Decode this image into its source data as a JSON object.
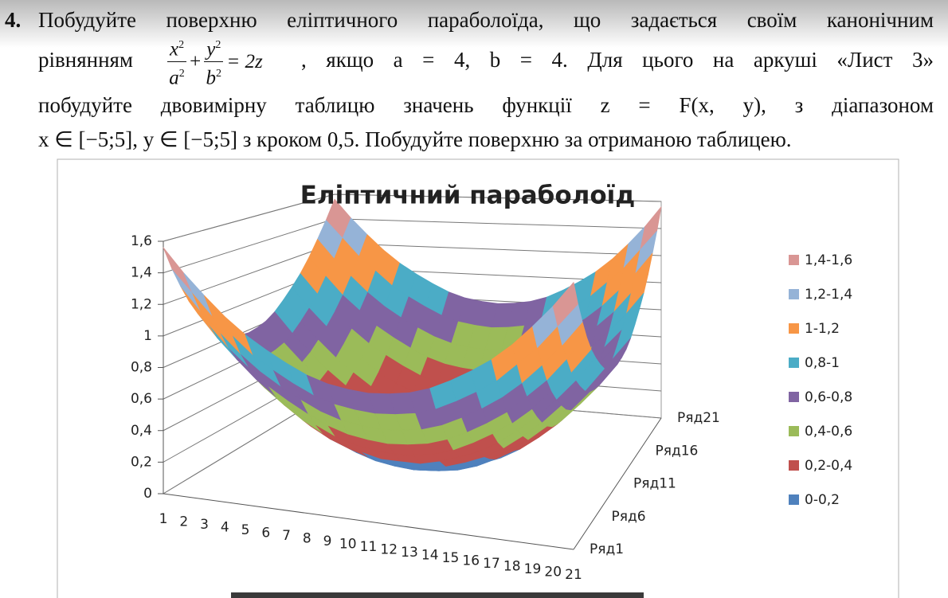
{
  "document": {
    "number": "4.",
    "line1": "Побудуйте поверхню еліптичного параболоїда, що задається своїм канонічним",
    "line2_before": "рівнянням",
    "formula": {
      "terms": [
        {
          "num": "x",
          "den": "a",
          "exp": "2"
        },
        {
          "num": "y",
          "den": "b",
          "exp": "2"
        }
      ],
      "plus": "+",
      "rhs": "= 2z"
    },
    "line2_after": ", якщо a = 4, b = 4. Для цього на аркуші «Лист 3»",
    "line3": "побудуйте двовимірну таблицю  значень функції z = F(x, y), з діапазоном",
    "line4": "x ∈ [−5;5],  y ∈ [−5;5] з кроком 0,5. Побудуйте поверхню за отриманою таблицею."
  },
  "chart_data": {
    "type": "surface",
    "title": "Еліптичний параболоїд",
    "categories": [
      "1",
      "2",
      "3",
      "4",
      "5",
      "6",
      "7",
      "8",
      "9",
      "10",
      "11",
      "12",
      "13",
      "14",
      "15",
      "16",
      "17",
      "18",
      "19",
      "20",
      "21"
    ],
    "series": [
      {
        "name": "Ряд1",
        "values": [
          1.56,
          1.41,
          1.28,
          1.16,
          1.06,
          0.98,
          0.91,
          0.85,
          0.81,
          0.79,
          0.78,
          0.79,
          0.81,
          0.85,
          0.91,
          0.98,
          1.06,
          1.16,
          1.28,
          1.41,
          1.56
        ]
      },
      {
        "name": null,
        "values": [
          1.41,
          1.27,
          1.13,
          1.02,
          0.91,
          0.83,
          0.76,
          0.7,
          0.66,
          0.64,
          0.63,
          0.64,
          0.66,
          0.7,
          0.76,
          0.83,
          0.91,
          1.02,
          1.13,
          1.27,
          1.41
        ]
      },
      {
        "name": null,
        "values": [
          1.28,
          1.13,
          1,
          0.88,
          0.78,
          0.7,
          0.63,
          0.57,
          0.53,
          0.51,
          0.5,
          0.51,
          0.53,
          0.57,
          0.63,
          0.7,
          0.78,
          0.88,
          1,
          1.13,
          1.28
        ]
      },
      {
        "name": null,
        "values": [
          1.16,
          1.02,
          0.88,
          0.77,
          0.66,
          0.58,
          0.51,
          0.45,
          0.41,
          0.39,
          0.38,
          0.39,
          0.41,
          0.45,
          0.51,
          0.58,
          0.66,
          0.77,
          0.88,
          1.02,
          1.16
        ]
      },
      {
        "name": null,
        "values": [
          1.06,
          0.91,
          0.78,
          0.66,
          0.56,
          0.48,
          0.41,
          0.35,
          0.31,
          0.29,
          0.28,
          0.29,
          0.31,
          0.35,
          0.41,
          0.48,
          0.56,
          0.66,
          0.78,
          0.91,
          1.06
        ]
      },
      {
        "name": "Ряд6",
        "values": [
          0.98,
          0.83,
          0.7,
          0.58,
          0.48,
          0.39,
          0.32,
          0.27,
          0.23,
          0.2,
          0.2,
          0.2,
          0.23,
          0.27,
          0.32,
          0.39,
          0.48,
          0.58,
          0.7,
          0.83,
          0.98
        ]
      },
      {
        "name": null,
        "values": [
          0.91,
          0.76,
          0.63,
          0.51,
          0.41,
          0.32,
          0.25,
          0.2,
          0.16,
          0.13,
          0.13,
          0.13,
          0.16,
          0.2,
          0.25,
          0.32,
          0.41,
          0.51,
          0.63,
          0.76,
          0.91
        ]
      },
      {
        "name": null,
        "values": [
          0.85,
          0.7,
          0.57,
          0.45,
          0.35,
          0.27,
          0.2,
          0.14,
          0.1,
          0.08,
          0.07,
          0.08,
          0.1,
          0.14,
          0.2,
          0.27,
          0.35,
          0.45,
          0.57,
          0.7,
          0.85
        ]
      },
      {
        "name": null,
        "values": [
          0.81,
          0.66,
          0.53,
          0.41,
          0.31,
          0.23,
          0.16,
          0.1,
          0.06,
          0.04,
          0.03,
          0.04,
          0.06,
          0.1,
          0.16,
          0.23,
          0.31,
          0.41,
          0.53,
          0.66,
          0.81
        ]
      },
      {
        "name": null,
        "values": [
          0.79,
          0.64,
          0.51,
          0.39,
          0.29,
          0.2,
          0.13,
          0.08,
          0.04,
          0.02,
          0.01,
          0.02,
          0.04,
          0.08,
          0.13,
          0.2,
          0.29,
          0.39,
          0.51,
          0.64,
          0.79
        ]
      },
      {
        "name": "Ряд11",
        "values": [
          0.78,
          0.63,
          0.5,
          0.38,
          0.28,
          0.2,
          0.13,
          0.07,
          0.03,
          0.01,
          0,
          0.01,
          0.03,
          0.07,
          0.13,
          0.2,
          0.28,
          0.38,
          0.5,
          0.63,
          0.78
        ]
      },
      {
        "name": null,
        "values": [
          0.79,
          0.64,
          0.51,
          0.39,
          0.29,
          0.2,
          0.13,
          0.08,
          0.04,
          0.02,
          0.01,
          0.02,
          0.04,
          0.08,
          0.13,
          0.2,
          0.29,
          0.39,
          0.51,
          0.64,
          0.79
        ]
      },
      {
        "name": null,
        "values": [
          0.81,
          0.66,
          0.53,
          0.41,
          0.31,
          0.23,
          0.16,
          0.1,
          0.06,
          0.04,
          0.03,
          0.04,
          0.06,
          0.1,
          0.16,
          0.23,
          0.31,
          0.41,
          0.53,
          0.66,
          0.81
        ]
      },
      {
        "name": null,
        "values": [
          0.85,
          0.7,
          0.57,
          0.45,
          0.35,
          0.27,
          0.2,
          0.14,
          0.1,
          0.08,
          0.07,
          0.08,
          0.1,
          0.14,
          0.2,
          0.27,
          0.35,
          0.45,
          0.57,
          0.7,
          0.85
        ]
      },
      {
        "name": null,
        "values": [
          0.91,
          0.76,
          0.63,
          0.51,
          0.41,
          0.32,
          0.25,
          0.2,
          0.16,
          0.13,
          0.13,
          0.13,
          0.16,
          0.2,
          0.25,
          0.32,
          0.41,
          0.51,
          0.63,
          0.76,
          0.91
        ]
      },
      {
        "name": "Ряд16",
        "values": [
          0.98,
          0.83,
          0.7,
          0.58,
          0.48,
          0.39,
          0.32,
          0.27,
          0.23,
          0.2,
          0.2,
          0.2,
          0.23,
          0.27,
          0.32,
          0.39,
          0.48,
          0.58,
          0.7,
          0.83,
          0.98
        ]
      },
      {
        "name": null,
        "values": [
          1.06,
          0.91,
          0.78,
          0.66,
          0.56,
          0.48,
          0.41,
          0.35,
          0.31,
          0.29,
          0.28,
          0.29,
          0.31,
          0.35,
          0.41,
          0.48,
          0.56,
          0.66,
          0.78,
          0.91,
          1.06
        ]
      },
      {
        "name": null,
        "values": [
          1.16,
          1.02,
          0.88,
          0.77,
          0.66,
          0.58,
          0.51,
          0.45,
          0.41,
          0.39,
          0.38,
          0.39,
          0.41,
          0.45,
          0.51,
          0.58,
          0.66,
          0.77,
          0.88,
          1.02,
          1.16
        ]
      },
      {
        "name": null,
        "values": [
          1.28,
          1.13,
          1,
          0.88,
          0.78,
          0.7,
          0.63,
          0.57,
          0.53,
          0.51,
          0.5,
          0.51,
          0.53,
          0.57,
          0.63,
          0.7,
          0.78,
          0.88,
          1,
          1.13,
          1.28
        ]
      },
      {
        "name": null,
        "values": [
          1.41,
          1.27,
          1.13,
          1.02,
          0.91,
          0.83,
          0.76,
          0.7,
          0.66,
          0.64,
          0.63,
          0.64,
          0.66,
          0.7,
          0.76,
          0.83,
          0.91,
          1.02,
          1.13,
          1.27,
          1.41
        ]
      },
      {
        "name": "Ряд21",
        "values": [
          1.56,
          1.41,
          1.28,
          1.16,
          1.06,
          0.98,
          0.91,
          0.85,
          0.81,
          0.79,
          0.78,
          0.79,
          0.81,
          0.85,
          0.91,
          0.98,
          1.06,
          1.16,
          1.28,
          1.41,
          1.56
        ]
      }
    ],
    "zlim": [
      0,
      1.6
    ],
    "zticks": [
      0,
      {
        "value": 0.2,
        "label": "0,2"
      },
      {
        "value": 0.4,
        "label": "0,4"
      },
      {
        "value": 0.6,
        "label": "0,6"
      },
      {
        "value": 0.8,
        "label": "0,8"
      },
      1,
      {
        "value": 1.2,
        "label": "1,2"
      },
      {
        "value": 1.4,
        "label": "1,4"
      },
      {
        "value": 1.6,
        "label": "1,6"
      }
    ],
    "grid": true,
    "bands": [
      {
        "label": "1,4-1,6",
        "from": 1.4,
        "to": 1.6,
        "color": "#d99694"
      },
      {
        "label": "1,2-1,4",
        "from": 1.2,
        "to": 1.4,
        "color": "#95b3d7"
      },
      {
        "label": "1-1,2",
        "from": 1,
        "to": 1.2,
        "color": "#f79646"
      },
      {
        "label": "0,8-1",
        "from": 0.8,
        "to": 1,
        "color": "#4bacc6"
      },
      {
        "label": "0,6-0,8",
        "from": 0.6,
        "to": 0.8,
        "color": "#8064a2"
      },
      {
        "label": "0,4-0,6",
        "from": 0.4,
        "to": 0.6,
        "color": "#9bbb59"
      },
      {
        "label": "0,2-0,4",
        "from": 0.2,
        "to": 0.4,
        "color": "#c0504d"
      },
      {
        "label": "0-0,2",
        "from": 0,
        "to": 0.2,
        "color": "#4f81bd"
      }
    ]
  }
}
